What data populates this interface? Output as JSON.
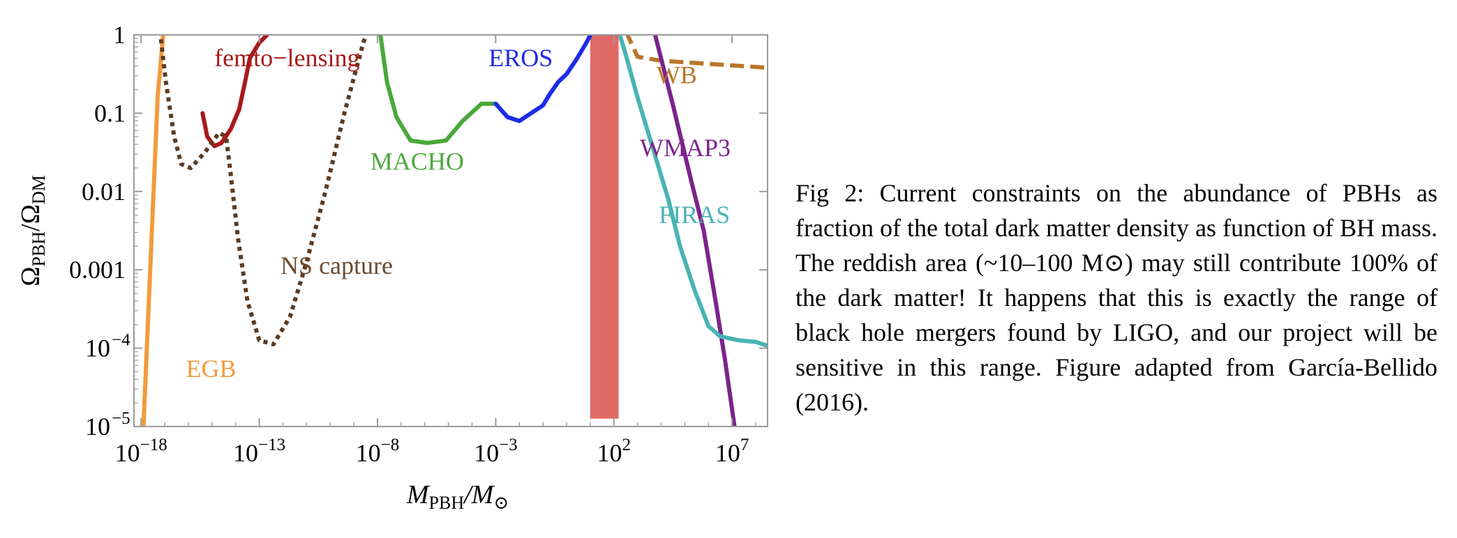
{
  "caption": {
    "text": "Fig 2: Current constraints on the abundance of PBHs as fraction of the total dark matter density as function of BH mass. The reddish area (~10–100 M⊙) may still contribute 100% of the dark matter! It happens that this is exactly the range of black hole mergers found by LIGO, and our project will be sensitive in this range. Figure adapted from García-Bellido (2016)."
  },
  "chart_data": {
    "type": "line",
    "xlabel": {
      "main": "M",
      "sub": "PBH",
      "sep": "/M",
      "sub2": "⊙"
    },
    "ylabel": {
      "main": "Ω",
      "sub": "PBH",
      "sep": "/Ω",
      "sub2": "DM"
    },
    "x_scale": "log",
    "y_scale": "log",
    "xlim_log10": [
      -18.3,
      8.5
    ],
    "ylim_log10": [
      -5,
      0
    ],
    "x_ticks": [
      {
        "exp": -18,
        "label_base": "10",
        "label_exp": "−18"
      },
      {
        "exp": -13,
        "label_base": "10",
        "label_exp": "−13"
      },
      {
        "exp": -8,
        "label_base": "10",
        "label_exp": "−8"
      },
      {
        "exp": -3,
        "label_base": "10",
        "label_exp": "−3"
      },
      {
        "exp": 2,
        "label_base": "10",
        "label_exp": "2"
      },
      {
        "exp": 7,
        "label_base": "10",
        "label_exp": "7"
      }
    ],
    "y_ticks": [
      {
        "exp": 0,
        "label": "1",
        "label_exp": ""
      },
      {
        "exp": -1,
        "label": "0.1",
        "label_exp": ""
      },
      {
        "exp": -2,
        "label": "0.01",
        "label_exp": ""
      },
      {
        "exp": -3,
        "label": "0.001",
        "label_exp": ""
      },
      {
        "exp": -4,
        "label": "10",
        "label_exp": "−4"
      },
      {
        "exp": -5,
        "label": "10",
        "label_exp": "−5"
      }
    ],
    "grid": false,
    "region": {
      "log10_x_min": 1.0,
      "log10_x_max": 2.2,
      "log10_y_min": -4.9,
      "log10_y_max": 0.0,
      "color": "#e06a66"
    },
    "series": [
      {
        "name": "EGB",
        "color": "#f39a3c",
        "dash": "solid",
        "points_log10": [
          [
            -17.9,
            -5.0
          ],
          [
            -17.3,
            -0.8
          ],
          [
            -17.05,
            0.05
          ]
        ]
      },
      {
        "name": "femto−lensing",
        "color": "#a8191c",
        "dash": "solid",
        "points_log10": [
          [
            -15.4,
            -1.0
          ],
          [
            -15.2,
            -1.3
          ],
          [
            -14.9,
            -1.42
          ],
          [
            -14.6,
            -1.38
          ],
          [
            -14.2,
            -1.2
          ],
          [
            -13.85,
            -0.95
          ],
          [
            -13.6,
            -0.6
          ],
          [
            -13.4,
            -0.3
          ],
          [
            -13.0,
            -0.1
          ],
          [
            -12.5,
            0.05
          ]
        ]
      },
      {
        "name": "NS capture",
        "color": "#5c3b21",
        "dash": "dotted",
        "points_log10": [
          [
            -17.2,
            0.05
          ],
          [
            -16.95,
            -0.6
          ],
          [
            -16.6,
            -1.3
          ],
          [
            -16.3,
            -1.65
          ],
          [
            -15.9,
            -1.7
          ],
          [
            -15.3,
            -1.5
          ],
          [
            -14.7,
            -1.25
          ],
          [
            -14.4,
            -1.3
          ],
          [
            -14.2,
            -1.8
          ],
          [
            -13.9,
            -2.6
          ],
          [
            -13.5,
            -3.4
          ],
          [
            -13.0,
            -3.9
          ],
          [
            -12.4,
            -3.95
          ],
          [
            -11.7,
            -3.6
          ],
          [
            -11.0,
            -2.9
          ],
          [
            -10.2,
            -2.0
          ],
          [
            -9.4,
            -1.0
          ],
          [
            -8.6,
            -0.1
          ],
          [
            -8.4,
            0.05
          ]
        ]
      },
      {
        "name": "MACHO",
        "color": "#4aa83a",
        "dash": "solid",
        "points_log10": [
          [
            -7.9,
            0.05
          ],
          [
            -7.6,
            -0.6
          ],
          [
            -7.2,
            -1.05
          ],
          [
            -6.6,
            -1.35
          ],
          [
            -5.9,
            -1.38
          ],
          [
            -5.1,
            -1.35
          ],
          [
            -4.4,
            -1.1
          ],
          [
            -3.6,
            -0.88
          ],
          [
            -3.0,
            -0.88
          ]
        ]
      },
      {
        "name": "EROS",
        "color": "#1c2be8",
        "dash": "solid",
        "points_log10": [
          [
            -3.0,
            -0.88
          ],
          [
            -2.5,
            -1.05
          ],
          [
            -2.0,
            -1.1
          ],
          [
            -1.5,
            -1.0
          ],
          [
            -1.0,
            -0.9
          ],
          [
            -0.7,
            -0.75
          ],
          [
            -0.35,
            -0.6
          ],
          [
            0.0,
            -0.5
          ],
          [
            0.4,
            -0.32
          ],
          [
            0.8,
            -0.12
          ],
          [
            1.1,
            0.05
          ]
        ]
      },
      {
        "name": "WB",
        "color": "#b9762a",
        "dash": "dashed",
        "points_log10": [
          [
            2.5,
            0.05
          ],
          [
            3.0,
            -0.28
          ],
          [
            4.0,
            -0.33
          ],
          [
            5.5,
            -0.36
          ],
          [
            8.5,
            -0.42
          ]
        ]
      },
      {
        "name": "WMAP3",
        "color": "#7b238c",
        "dash": "solid",
        "points_log10": [
          [
            3.7,
            0.05
          ],
          [
            4.5,
            -0.9
          ],
          [
            5.3,
            -1.9
          ],
          [
            5.8,
            -2.5
          ],
          [
            6.3,
            -3.4
          ],
          [
            6.7,
            -4.15
          ],
          [
            7.1,
            -5.0
          ]
        ]
      },
      {
        "name": "FIRAS",
        "color": "#4ab3b3",
        "dash": "solid",
        "points_log10": [
          [
            2.2,
            0.05
          ],
          [
            2.5,
            -0.25
          ],
          [
            3.0,
            -0.8
          ],
          [
            3.6,
            -1.4
          ],
          [
            4.3,
            -2.1
          ],
          [
            4.8,
            -2.7
          ],
          [
            5.4,
            -3.25
          ],
          [
            6.0,
            -3.72
          ],
          [
            6.5,
            -3.85
          ],
          [
            7.3,
            -3.9
          ],
          [
            8.0,
            -3.92
          ],
          [
            8.5,
            -3.97
          ]
        ]
      }
    ],
    "annotations": [
      {
        "label": "femto−lensing",
        "color": "#a8191c",
        "at_log10": [
          -14.9,
          -0.4
        ]
      },
      {
        "label": "NS  capture",
        "color": "#6a4a30",
        "at_log10": [
          -12.1,
          -3.05
        ]
      },
      {
        "label": "EGB",
        "color": "#f39a3c",
        "at_log10": [
          -16.1,
          -4.37
        ]
      },
      {
        "label": "MACHO",
        "color": "#4aa83a",
        "at_log10": [
          -8.3,
          -1.72
        ]
      },
      {
        "label": "EROS",
        "color": "#1c2be8",
        "at_log10": [
          -3.3,
          -0.4
        ]
      },
      {
        "label": "WB",
        "color": "#b9762a",
        "at_log10": [
          3.8,
          -0.62
        ]
      },
      {
        "label": "WMAP3",
        "color": "#7b238c",
        "at_log10": [
          3.1,
          -1.55
        ]
      },
      {
        "label": "FIRAS",
        "color": "#4ab3b3",
        "at_log10": [
          3.9,
          -2.4
        ]
      }
    ]
  }
}
